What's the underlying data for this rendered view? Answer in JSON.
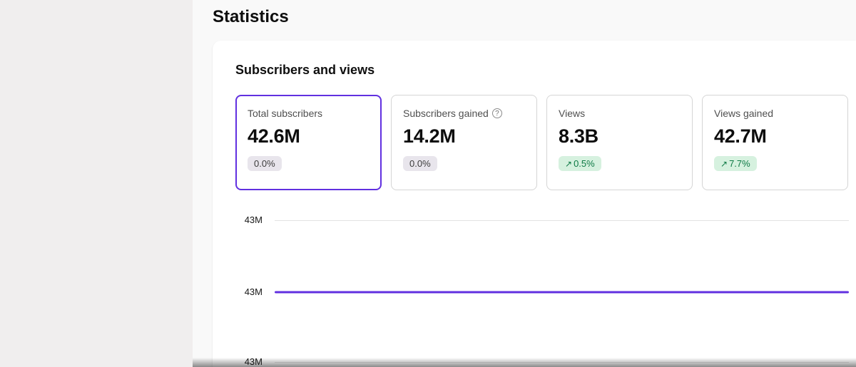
{
  "page": {
    "title": "Statistics"
  },
  "panel": {
    "heading": "Subscribers and views"
  },
  "icons": {
    "info": "?",
    "trend_up": "↗"
  },
  "stat_cards": [
    {
      "label": "Total subscribers",
      "value": "42.6M",
      "delta": "0.0%",
      "trend": "neutral",
      "selected": true
    },
    {
      "label": "Subscribers gained",
      "value": "14.2M",
      "delta": "0.0%",
      "trend": "neutral",
      "selected": false
    },
    {
      "label": "Views",
      "value": "8.3B",
      "delta": "0.5%",
      "trend": "up",
      "selected": false
    },
    {
      "label": "Views gained",
      "value": "42.7M",
      "delta": "7.7%",
      "trend": "up",
      "selected": false
    }
  ],
  "chart_data": {
    "type": "line",
    "title": "Subscribers and views",
    "y_tick_labels": [
      "43M",
      "43M",
      "43M"
    ],
    "series": [
      {
        "name": "Total subscribers",
        "values": [
          42.6,
          42.6
        ],
        "unit": "M",
        "color": "#6130e0",
        "shape": "flat"
      }
    ],
    "grid": true,
    "legend": "none"
  },
  "colors": {
    "accent": "#6130e0",
    "positive_badge_bg": "#d6f1df",
    "positive_badge_text": "#0e7a45",
    "neutral_badge_bg": "#e8e5ec",
    "neutral_badge_text": "#3c3c3c",
    "gridline": "#e3e3e3",
    "sidebar_bg": "#f0eeee"
  }
}
